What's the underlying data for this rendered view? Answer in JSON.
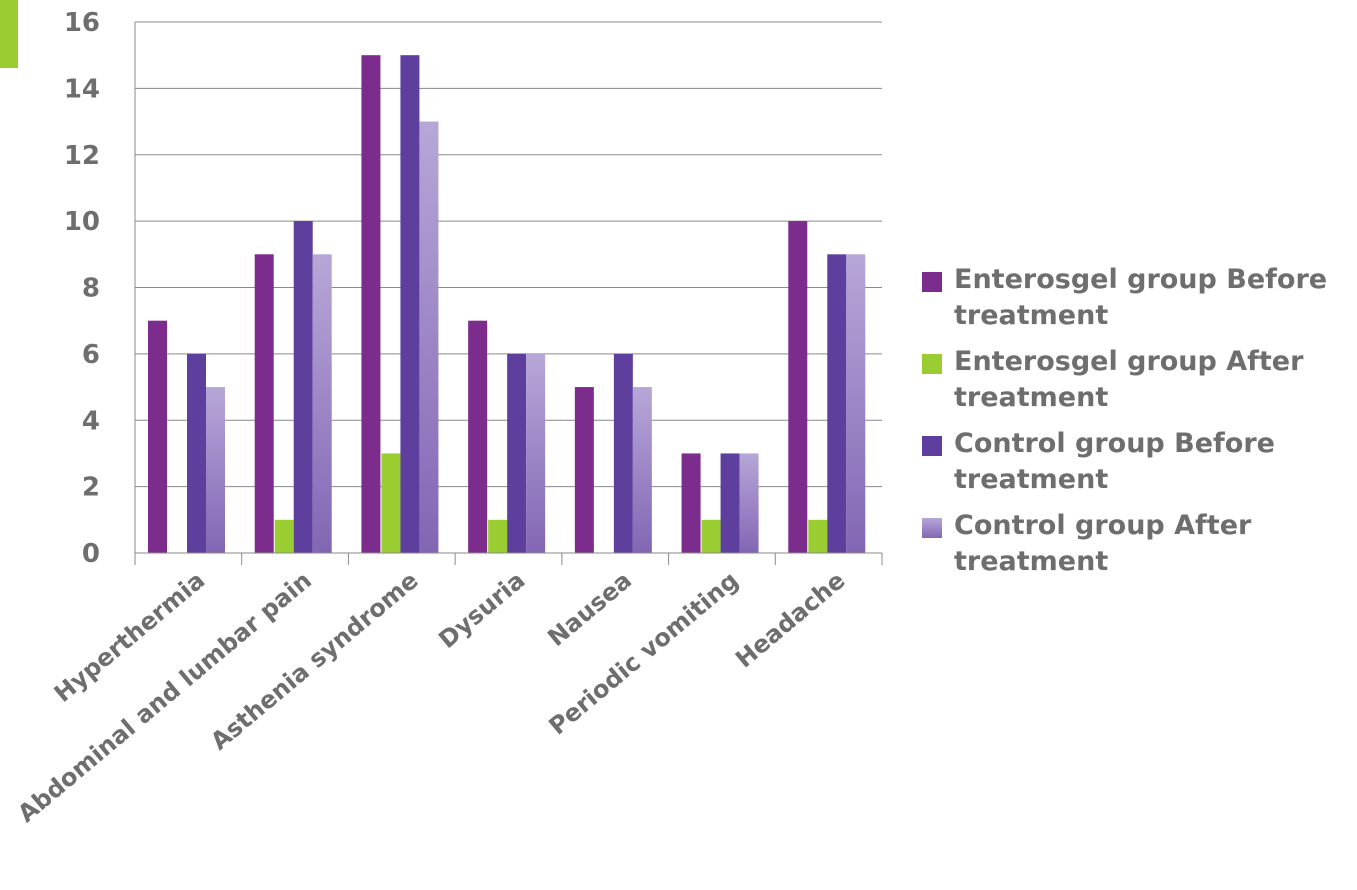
{
  "chart_data": {
    "type": "bar",
    "title": "",
    "xlabel": "",
    "ylabel": "",
    "ylim": [
      0,
      16
    ],
    "yticks": [
      "0",
      "2",
      "4",
      "6",
      "8",
      "10",
      "12",
      "14",
      "16"
    ],
    "grid": true,
    "legend_position": "right",
    "categories": [
      "Hyperthermia",
      "Abdominal and lumbar pain",
      "Asthenia syndrome",
      "Dysuria",
      "Nausea",
      "Periodic vomiting",
      "Headache"
    ],
    "series": [
      {
        "name": "Enterosgel group Before treatment",
        "color": "#7B2C8C",
        "values": [
          7,
          9,
          15,
          7,
          5,
          3,
          10
        ]
      },
      {
        "name": "Enterosgel group After treatment",
        "color": "#9ACD32",
        "values": [
          0,
          1,
          3,
          1,
          0,
          1,
          1
        ]
      },
      {
        "name": "Control group Before treatment",
        "color": "#5E3F9E",
        "values": [
          6,
          10,
          15,
          6,
          6,
          3,
          9
        ]
      },
      {
        "name": "Control group After treatment",
        "color": "#A893CC",
        "values": [
          5,
          9,
          13,
          6,
          5,
          3,
          9
        ]
      }
    ]
  }
}
